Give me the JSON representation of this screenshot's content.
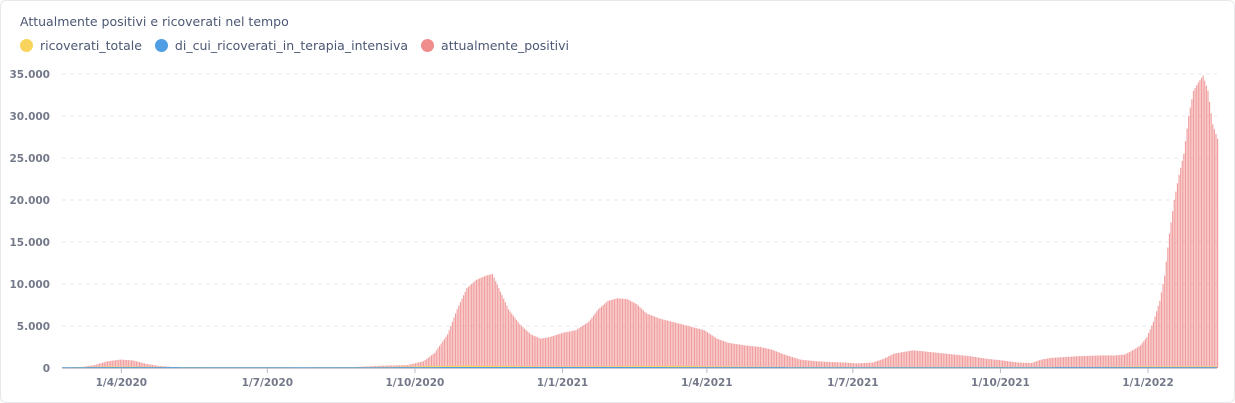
{
  "chart_data": {
    "type": "bar",
    "title": "Attualmente positivi e ricoverati nel tempo",
    "legend_position": "top-left",
    "grid": true,
    "ylim": [
      0,
      36000
    ],
    "y_ticks": [
      "0",
      "5.000",
      "10.000",
      "15.000",
      "20.000",
      "25.000",
      "30.000",
      "35.000"
    ],
    "y_tick_values": [
      0,
      5000,
      10000,
      15000,
      20000,
      25000,
      30000,
      35000
    ],
    "x_ticks": [
      "1/4/2020",
      "1/7/2020",
      "1/10/2020",
      "1/1/2021",
      "1/4/2021",
      "1/7/2021",
      "1/10/2021",
      "1/1/2022"
    ],
    "x_tick_days": [
      37,
      128,
      220,
      312,
      402,
      493,
      585,
      677
    ],
    "series": [
      {
        "name": "ricoverati_totale",
        "color": "#f9d45c",
        "points": [
          [
            0,
            0
          ],
          [
            30,
            80
          ],
          [
            50,
            60
          ],
          [
            80,
            20
          ],
          [
            150,
            5
          ],
          [
            200,
            20
          ],
          [
            225,
            120
          ],
          [
            250,
            180
          ],
          [
            270,
            160
          ],
          [
            300,
            90
          ],
          [
            340,
            110
          ],
          [
            360,
            140
          ],
          [
            380,
            150
          ],
          [
            400,
            100
          ],
          [
            430,
            60
          ],
          [
            470,
            20
          ],
          [
            520,
            20
          ],
          [
            560,
            40
          ],
          [
            600,
            20
          ],
          [
            640,
            30
          ],
          [
            660,
            60
          ],
          [
            680,
            100
          ],
          [
            688,
            90
          ]
        ]
      },
      {
        "name": "di_cui_ricoverati_in_terapia_intensiva",
        "color": "#509ee3",
        "points": [
          [
            0,
            0
          ],
          [
            30,
            12
          ],
          [
            60,
            8
          ],
          [
            100,
            2
          ],
          [
            200,
            3
          ],
          [
            240,
            20
          ],
          [
            280,
            25
          ],
          [
            320,
            18
          ],
          [
            360,
            20
          ],
          [
            400,
            15
          ],
          [
            450,
            6
          ],
          [
            520,
            4
          ],
          [
            600,
            5
          ],
          [
            660,
            8
          ],
          [
            688,
            10
          ]
        ]
      },
      {
        "name": "attualmente_positivi",
        "color": "#ef8c8c",
        "points": [
          [
            0,
            0
          ],
          [
            10,
            50
          ],
          [
            20,
            350
          ],
          [
            28,
            800
          ],
          [
            36,
            1000
          ],
          [
            44,
            900
          ],
          [
            52,
            500
          ],
          [
            60,
            250
          ],
          [
            70,
            100
          ],
          [
            90,
            20
          ],
          [
            130,
            15
          ],
          [
            160,
            50
          ],
          [
            180,
            100
          ],
          [
            200,
            280
          ],
          [
            215,
            350
          ],
          [
            225,
            800
          ],
          [
            232,
            1800
          ],
          [
            240,
            4000
          ],
          [
            246,
            7000
          ],
          [
            252,
            9500
          ],
          [
            258,
            10500
          ],
          [
            264,
            11000
          ],
          [
            268,
            11200
          ],
          [
            272,
            9500
          ],
          [
            278,
            7000
          ],
          [
            285,
            5200
          ],
          [
            292,
            4000
          ],
          [
            298,
            3500
          ],
          [
            304,
            3700
          ],
          [
            312,
            4200
          ],
          [
            320,
            4500
          ],
          [
            328,
            5500
          ],
          [
            334,
            7000
          ],
          [
            340,
            8000
          ],
          [
            346,
            8300
          ],
          [
            352,
            8200
          ],
          [
            358,
            7600
          ],
          [
            364,
            6500
          ],
          [
            372,
            5900
          ],
          [
            380,
            5500
          ],
          [
            390,
            5000
          ],
          [
            400,
            4500
          ],
          [
            408,
            3500
          ],
          [
            415,
            3000
          ],
          [
            425,
            2700
          ],
          [
            435,
            2500
          ],
          [
            442,
            2200
          ],
          [
            450,
            1600
          ],
          [
            460,
            1000
          ],
          [
            470,
            800
          ],
          [
            480,
            700
          ],
          [
            488,
            650
          ],
          [
            495,
            550
          ],
          [
            505,
            650
          ],
          [
            512,
            1100
          ],
          [
            518,
            1700
          ],
          [
            524,
            1900
          ],
          [
            530,
            2100
          ],
          [
            536,
            2000
          ],
          [
            546,
            1800
          ],
          [
            556,
            1600
          ],
          [
            566,
            1400
          ],
          [
            576,
            1100
          ],
          [
            586,
            900
          ],
          [
            596,
            650
          ],
          [
            604,
            600
          ],
          [
            610,
            1000
          ],
          [
            616,
            1200
          ],
          [
            624,
            1300
          ],
          [
            632,
            1400
          ],
          [
            640,
            1450
          ],
          [
            648,
            1500
          ],
          [
            656,
            1500
          ],
          [
            662,
            1600
          ],
          [
            668,
            2200
          ],
          [
            672,
            2700
          ],
          [
            676,
            3700
          ],
          [
            680,
            5500
          ],
          [
            684,
            8000
          ],
          [
            687,
            11000
          ],
          [
            690,
            16000
          ],
          [
            693,
            20000
          ],
          [
            696,
            23000
          ],
          [
            699,
            25500
          ],
          [
            702,
            30000
          ],
          [
            705,
            33000
          ],
          [
            708,
            34000
          ],
          [
            711,
            34800
          ],
          [
            714,
            33000
          ],
          [
            717,
            29000
          ],
          [
            720,
            27300
          ]
        ]
      }
    ]
  }
}
